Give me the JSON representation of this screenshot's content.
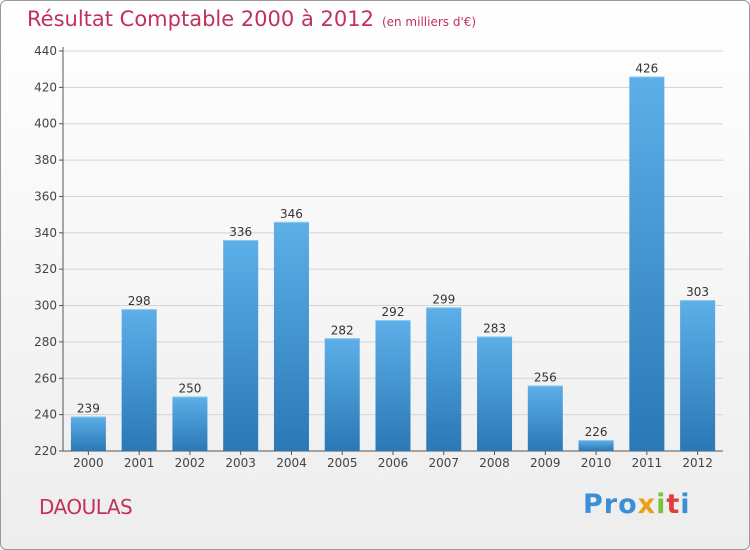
{
  "header": {
    "title": "Résultat Comptable 2000 à 2012",
    "unit": "(en milliers d'€)"
  },
  "footer": {
    "commune": "DAOULAS",
    "logo_letters": [
      "Pro",
      "x",
      "i",
      "t",
      "i"
    ]
  },
  "colors": {
    "bar_top": "#5dafe8",
    "bar_bottom": "#2a78b6",
    "title": "#c0325a",
    "grid": "#d4d4d4"
  },
  "chart_data": {
    "type": "bar",
    "title": "Résultat Comptable 2000 à 2012",
    "xlabel": "",
    "ylabel": "",
    "categories": [
      "2000",
      "2001",
      "2002",
      "2003",
      "2004",
      "2005",
      "2006",
      "2007",
      "2008",
      "2009",
      "2010",
      "2011",
      "2012"
    ],
    "values": [
      239,
      298,
      250,
      336,
      346,
      282,
      292,
      299,
      283,
      256,
      226,
      426,
      303
    ],
    "ylim": [
      220,
      440
    ],
    "yticks": [
      220,
      240,
      260,
      280,
      300,
      320,
      340,
      360,
      380,
      400,
      420,
      440
    ],
    "grid": true,
    "legend": "none"
  }
}
